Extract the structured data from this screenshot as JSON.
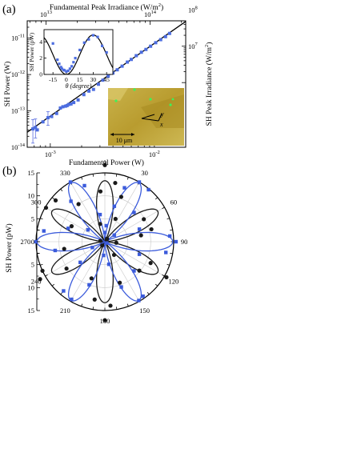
{
  "chart_data": [
    {
      "panel_label": "(a)",
      "type": "scatter",
      "xlabel": "Fundamental Power (W)",
      "ylabel": "SH Power (W)",
      "top_xlabel": "Fundamental Peak Irradiance (W/m²)",
      "right_ylabel": "SH Peak Irradiance (W/m²)",
      "x_scale": "log",
      "y_scale": "log",
      "xlim": [
        0.0006,
        0.02
      ],
      "ylim": [
        1e-14,
        3e-11
      ],
      "x_tick_labels": [
        {
          "value": 0.001,
          "base": "10",
          "exp": "-3"
        },
        {
          "value": 0.01,
          "base": "10",
          "exp": "-2"
        }
      ],
      "y_tick_labels": [
        {
          "value": 1e-14,
          "base": "10",
          "exp": "-14"
        },
        {
          "value": 1e-13,
          "base": "10",
          "exp": "-13"
        },
        {
          "value": 1e-12,
          "base": "10",
          "exp": "-12"
        },
        {
          "value": 1e-11,
          "base": "10",
          "exp": "-11"
        }
      ],
      "top_tick_labels": [
        {
          "value": 10000000000000.0,
          "base": "10",
          "exp": "13"
        },
        {
          "value": 100000000000000.0,
          "base": "10",
          "exp": "14"
        }
      ],
      "top_to_bottom_factor": 1.1e+16,
      "right_tick_labels": [
        {
          "value": 10000000.0,
          "base": "10",
          "exp": "7"
        },
        {
          "value": 100000000.0,
          "base": "10",
          "exp": "8"
        },
        {
          "value": 1000000000.0,
          "base": "10",
          "exp": "9"
        }
      ],
      "right_to_left_factor": 6e-19,
      "series": [
        {
          "points": [
            [
              0.00068,
              3.2e-14
            ],
            [
              0.00072,
              3.5e-14
            ],
            [
              0.00075,
              3e-14
            ],
            [
              0.00085,
              5e-14
            ],
            [
              0.00095,
              6.5e-14
            ],
            [
              0.00103,
              7e-14
            ],
            [
              0.00115,
              8.5e-14
            ],
            [
              0.00125,
              1.2e-13
            ],
            [
              0.00132,
              1.3e-13
            ],
            [
              0.0014,
              1.35e-13
            ],
            [
              0.00145,
              1.4e-13
            ],
            [
              0.0015,
              1.5e-13
            ],
            [
              0.00158,
              1.55e-13
            ],
            [
              0.00168,
              1.7e-13
            ],
            [
              0.00185,
              2e-13
            ],
            [
              0.0021,
              2.8e-13
            ],
            [
              0.00235,
              3.5e-13
            ],
            [
              0.0026,
              3.9e-13
            ],
            [
              0.0029,
              5.4e-13
            ],
            [
              0.0032,
              7e-13
            ],
            [
              0.0036,
              9e-13
            ],
            [
              0.004,
              1.1e-12
            ],
            [
              0.0044,
              1.35e-12
            ],
            [
              0.0049,
              1.7e-12
            ],
            [
              0.0055,
              2.2e-12
            ],
            [
              0.006,
              2.6e-12
            ],
            [
              0.0067,
              3.3e-12
            ],
            [
              0.0075,
              4.1e-12
            ],
            [
              0.0083,
              4.9e-12
            ],
            [
              0.0092,
              6e-12
            ],
            [
              0.0103,
              7.5e-12
            ],
            [
              0.0115,
              9.1e-12
            ],
            [
              0.0128,
              1.1e-11
            ],
            [
              0.014,
              1.35e-11
            ]
          ],
          "error_bars": [
            {
              "x": 0.00068,
              "low": 1.3e-14,
              "high": 5.8e-14
            },
            {
              "x": 0.00072,
              "low": 1.8e-14,
              "high": 6e-14
            },
            {
              "x": 0.00095,
              "low": 4e-14,
              "high": 9.5e-14
            }
          ],
          "fit_line": {
            "slope": 2,
            "x_range": [
              0.0006,
              0.02
            ],
            "y_at_0.001": 7.2e-14
          }
        }
      ],
      "inset": {
        "type": "scatter",
        "xlabel": "θ (degree)",
        "ylabel": "SH Power (pW)",
        "xlim": [
          -25,
          52
        ],
        "ylim": [
          0,
          5.5
        ],
        "x_ticks": [
          -15,
          0,
          15,
          30,
          45
        ],
        "y_ticks": [
          0,
          2,
          4
        ],
        "points": [
          [
            -15,
            3.8
          ],
          [
            -10,
            1.8
          ],
          [
            -8,
            1.3
          ],
          [
            -6,
            0.9
          ],
          [
            -5,
            0.7
          ],
          [
            -3,
            0.55
          ],
          [
            -2,
            0.5
          ],
          [
            0,
            0.35
          ],
          [
            2,
            0.45
          ],
          [
            4,
            0.7
          ],
          [
            6,
            1.0
          ],
          [
            8,
            1.5
          ],
          [
            10,
            2.0
          ],
          [
            15,
            3.0
          ],
          [
            20,
            3.9
          ],
          [
            25,
            4.3
          ],
          [
            30,
            4.8
          ],
          [
            35,
            4.6
          ],
          [
            40,
            3.5
          ],
          [
            45,
            2.7
          ]
        ],
        "fit_curve": {
          "form": "A*cos^2(3*(theta - theta0))",
          "amplitude": 4.85,
          "theta0": 30
        }
      },
      "image_inset": {
        "scale_label": "10 μm",
        "axis_labels": [
          "y",
          "x"
        ]
      }
    },
    {
      "panel_label": "(b)",
      "type": "polar",
      "ylabel": "SH Power (pW)",
      "r_ticks": [
        15,
        10,
        5,
        0,
        5,
        10,
        15
      ],
      "angle_labels": [
        "0",
        "30",
        "60",
        "90",
        "120",
        "150",
        "180",
        "210",
        "240",
        "270",
        "300",
        "330"
      ],
      "rmax": 15,
      "series": [
        {
          "color": "#1a1a1a",
          "marker": "circle",
          "fit": {
            "amplitude": 13.3,
            "phase_deg": 0
          },
          "points": [
            [
              0,
              16.7
            ],
            [
              10,
              13.0
            ],
            [
              20,
              10.4
            ],
            [
              25,
              5.5
            ],
            [
              35,
              0.8
            ],
            [
              50,
              0.5
            ],
            [
              60,
              9.8
            ],
            [
              75,
              10.5
            ],
            [
              80,
              8.0
            ],
            [
              95,
              2.5
            ],
            [
              115,
              11.0
            ],
            [
              120,
              15.5
            ],
            [
              130,
              9.8
            ],
            [
              145,
              3.5
            ],
            [
              160,
              9.5
            ],
            [
              175,
              14.0
            ],
            [
              180,
              17.1
            ],
            [
              190,
              12.8
            ],
            [
              200,
              8.5
            ],
            [
              215,
              1.0
            ],
            [
              235,
              10.2
            ],
            [
              240,
              16.3
            ],
            [
              245,
              15.0
            ],
            [
              260,
              9.0
            ],
            [
              280,
              1.0
            ],
            [
              295,
              8.0
            ],
            [
              300,
              14.8
            ],
            [
              310,
              14.0
            ],
            [
              325,
              10.0
            ],
            [
              345,
              4.0
            ],
            [
              355,
              11.0
            ]
          ]
        },
        {
          "color": "#3b5bdb",
          "marker": "square",
          "fit": {
            "amplitude": 14.8,
            "phase_deg": 30
          },
          "points": [
            [
              0,
              2.0
            ],
            [
              5,
              3.5
            ],
            [
              15,
              8.0
            ],
            [
              20,
              12.5
            ],
            [
              30,
              15.0
            ],
            [
              40,
              14.8
            ],
            [
              45,
              9.0
            ],
            [
              55,
              2.5
            ],
            [
              70,
              8.0
            ],
            [
              85,
              14.2
            ],
            [
              90,
              15.5
            ],
            [
              100,
              13.5
            ],
            [
              110,
              8.0
            ],
            [
              125,
              0.5
            ],
            [
              135,
              9.0
            ],
            [
              145,
              14.5
            ],
            [
              150,
              14.8
            ],
            [
              160,
              10.5
            ],
            [
              170,
              5.0
            ],
            [
              185,
              3.0
            ],
            [
              200,
              10.0
            ],
            [
              210,
              14.5
            ],
            [
              220,
              14.0
            ],
            [
              230,
              7.0
            ],
            [
              245,
              3.0
            ],
            [
              260,
              11.0
            ],
            [
              270,
              15.0
            ],
            [
              280,
              13.5
            ],
            [
              290,
              8.5
            ],
            [
              305,
              4.5
            ],
            [
              320,
              11.5
            ],
            [
              330,
              15.0
            ],
            [
              340,
              13.0
            ],
            [
              350,
              6.0
            ]
          ]
        }
      ]
    }
  ]
}
